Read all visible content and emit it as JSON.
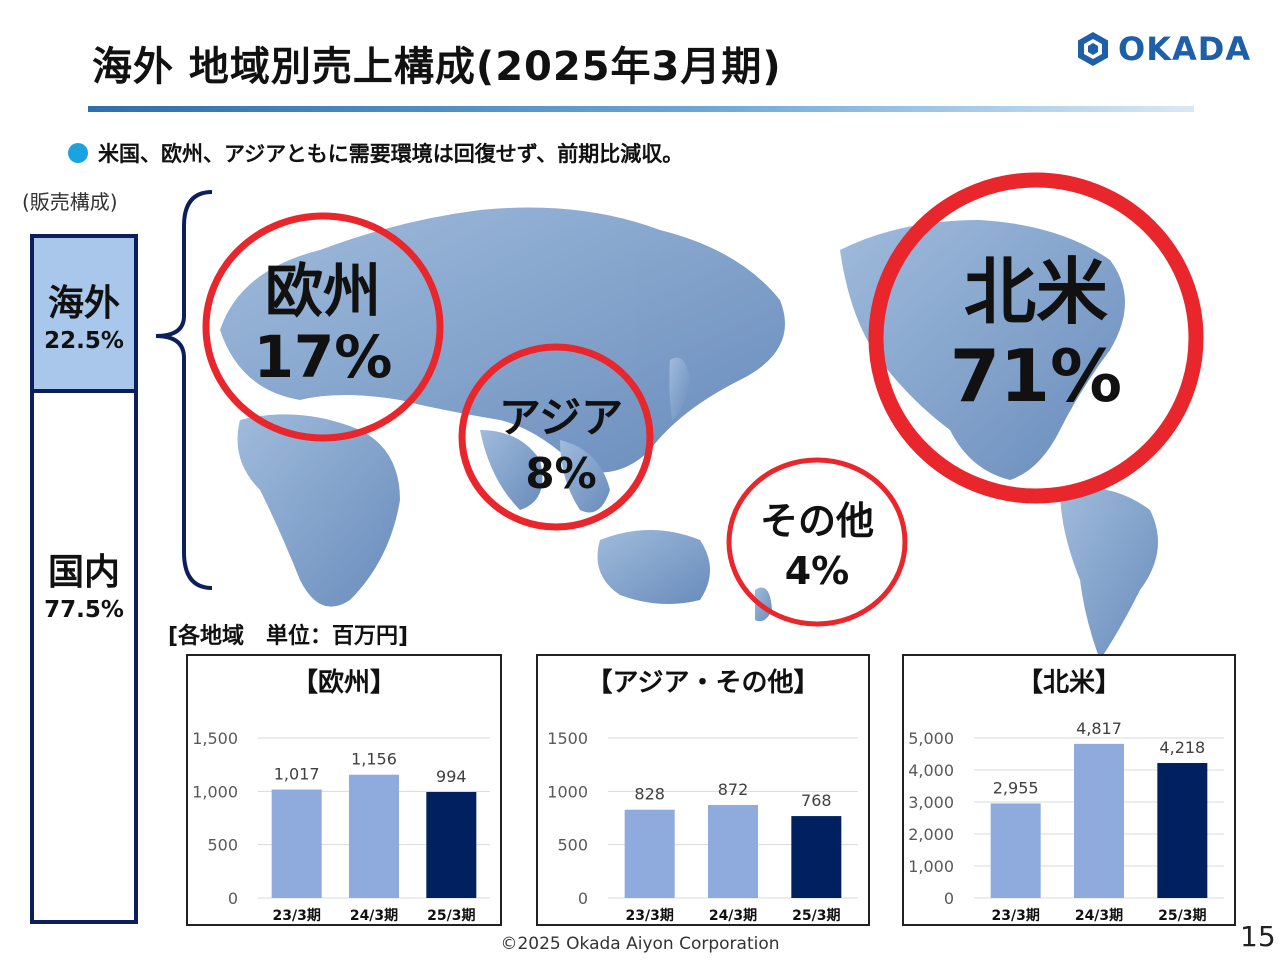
{
  "slide": {
    "title": "海外 地域別売上構成(2025年3月期)",
    "logo_text": "OKADA",
    "bullet": "米国、欧州、アジアともに需要環境は回復せず、前期比減収。",
    "mix_label": "(販売構成)",
    "unit_label": "[各地域　単位：百万円]",
    "footer": "©2025 Okada Aiyon Corporation",
    "page_number": "15"
  },
  "sales_mix": {
    "overseas": {
      "name": "海外",
      "pct": "22.5%",
      "value": 22.5
    },
    "domestic": {
      "name": "国内",
      "pct": "77.5%",
      "value": 77.5
    }
  },
  "regions": {
    "europe": {
      "name": "欧州",
      "pct": "17%"
    },
    "asia": {
      "name": "アジア",
      "pct": "8%"
    },
    "other": {
      "name": "その他",
      "pct": "4%"
    },
    "north_america": {
      "name": "北米",
      "pct": "71%"
    }
  },
  "colors": {
    "title_line": "#2f6eaa",
    "bullet_dot": "#1aa3e0",
    "logo": "#1d5fa8",
    "overseas_fill": "#a8c7ea",
    "frame": "#0d1f5a",
    "circle": "#e8262b",
    "bar_prior": "#8faadc",
    "bar_current": "#002060",
    "map_water": "#4f78b0"
  },
  "chart_data": [
    {
      "type": "bar",
      "title": "【欧州】",
      "categories": [
        "23/3期",
        "24/3期",
        "25/3期"
      ],
      "values": [
        1017,
        1156,
        994
      ],
      "value_labels": [
        "1,017",
        "1,156",
        "994"
      ],
      "yticks": [
        "0",
        "500",
        "1,000",
        "1,500"
      ],
      "ylim": [
        0,
        1500
      ],
      "grid": true
    },
    {
      "type": "bar",
      "title": "【アジア・その他】",
      "categories": [
        "23/3期",
        "24/3期",
        "25/3期"
      ],
      "values": [
        828,
        872,
        768
      ],
      "value_labels": [
        "828",
        "872",
        "768"
      ],
      "yticks": [
        "0",
        "500",
        "1000",
        "1500"
      ],
      "ylim": [
        0,
        1500
      ],
      "grid": true
    },
    {
      "type": "bar",
      "title": "【北米】",
      "categories": [
        "23/3期",
        "24/3期",
        "25/3期"
      ],
      "values": [
        2955,
        4817,
        4218
      ],
      "value_labels": [
        "2,955",
        "4,817",
        "4,218"
      ],
      "yticks": [
        "0",
        "1,000",
        "2,000",
        "3,000",
        "4,000",
        "5,000"
      ],
      "ylim": [
        0,
        5000
      ],
      "grid": true
    }
  ]
}
